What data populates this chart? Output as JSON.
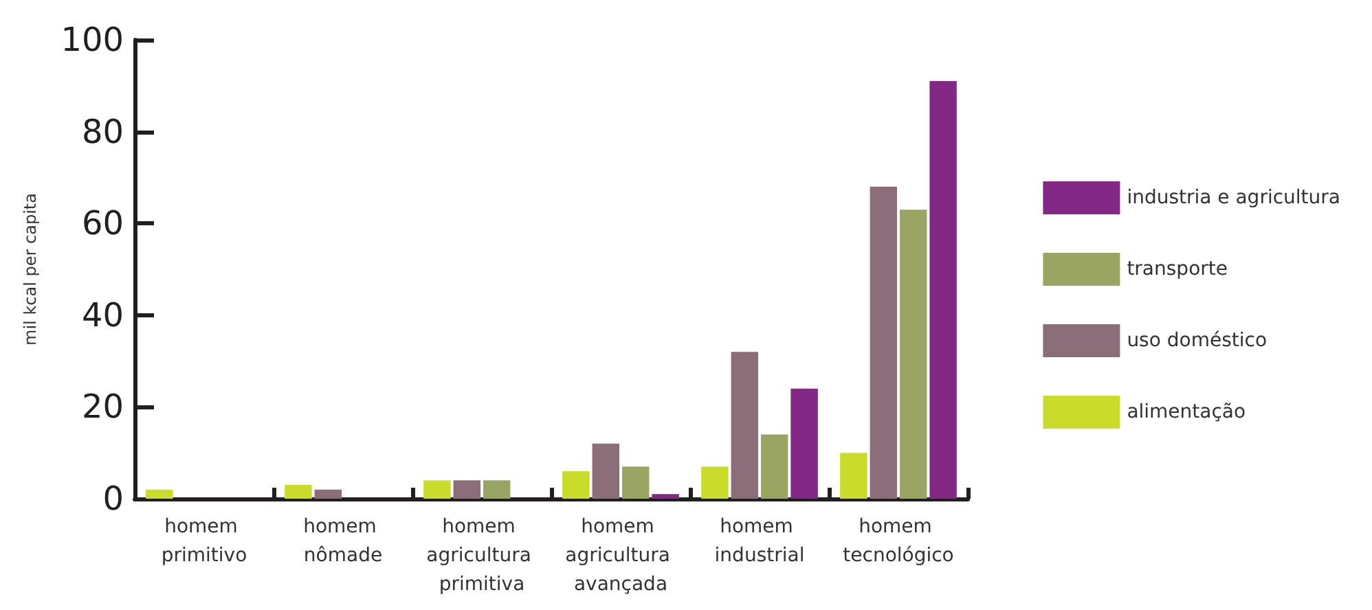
{
  "chart_data": {
    "type": "bar",
    "ylabel": "mil kcal per capita",
    "categories": [
      "homem primitivo",
      "homem nômade",
      "homem agricultura primitiva",
      "homem agricultura avançada",
      "homem industrial",
      "homem tecnológico"
    ],
    "series": [
      {
        "name": "alimentação",
        "color": "#cadc2a",
        "values": [
          2,
          3,
          4,
          6,
          7,
          10
        ]
      },
      {
        "name": "uso doméstico",
        "color": "#8c6e7b",
        "values": [
          null,
          2,
          4,
          12,
          32,
          68
        ]
      },
      {
        "name": "transporte",
        "color": "#9ba562",
        "values": [
          null,
          null,
          4,
          7,
          14,
          63
        ]
      },
      {
        "name": "industria e agricultura",
        "color": "#832985",
        "values": [
          null,
          null,
          null,
          1,
          24,
          91
        ]
      }
    ],
    "ylim": [
      0,
      100
    ],
    "yticks": [
      0,
      20,
      40,
      60,
      80,
      100
    ],
    "grid": false,
    "legend": "right"
  }
}
